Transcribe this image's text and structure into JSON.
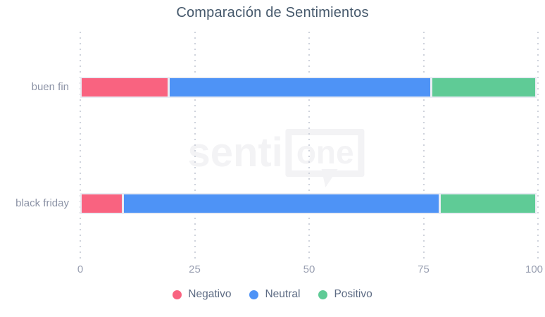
{
  "chart": {
    "title": "Comparación de Sentimientos",
    "watermark": {
      "part1": "senti",
      "part2": "one"
    }
  },
  "chart_data": {
    "type": "bar",
    "orientation": "horizontal",
    "stacked": true,
    "title": "Comparación de Sentimientos",
    "categories": [
      "buen fin",
      "black friday"
    ],
    "series": [
      {
        "name": "Negativo",
        "color": "#F96380",
        "values": [
          19.4,
          9.4
        ]
      },
      {
        "name": "Neutral",
        "color": "#4E93F6",
        "values": [
          57.6,
          69.4
        ]
      },
      {
        "name": "Positivo",
        "color": "#5FCB96",
        "values": [
          23.0,
          21.2
        ]
      }
    ],
    "xlim": [
      0,
      100
    ],
    "xticks": [
      0,
      25,
      50,
      75,
      100
    ],
    "grid": "dotted-vertical",
    "legend_position": "bottom",
    "colors": {
      "title_text": "#45586B",
      "category_text": "#8C93A6",
      "tick_text": "#999FB1",
      "legend_text": "#5E6C84",
      "gridline": "#CFD3DC",
      "bar_border": "#EAEDF4",
      "watermark": "#F3F3F5"
    }
  }
}
